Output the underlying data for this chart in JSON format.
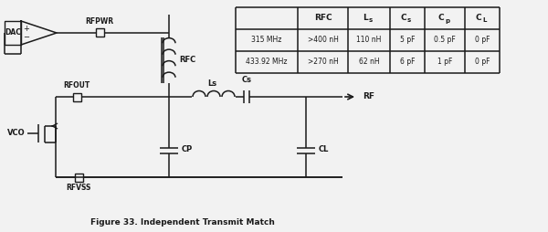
{
  "title": "Figure 33. Independent Transmit Match",
  "table_headers": [
    "",
    "RFC",
    "Ls",
    "Cs",
    "Cp",
    "CL"
  ],
  "table_rows": [
    [
      "315 MHz",
      ">400 nH",
      "110 nH",
      "5 pF",
      "0.5 pF",
      "0 pF"
    ],
    [
      "433.92 MHz",
      ">270 nH",
      "62 nH",
      "6 pF",
      "1 pF",
      "0 pF"
    ]
  ],
  "bg_color": "#f2f2f2",
  "line_color": "#1a1a1a",
  "figsize": [
    6.0,
    2.54
  ],
  "dpi": 100
}
